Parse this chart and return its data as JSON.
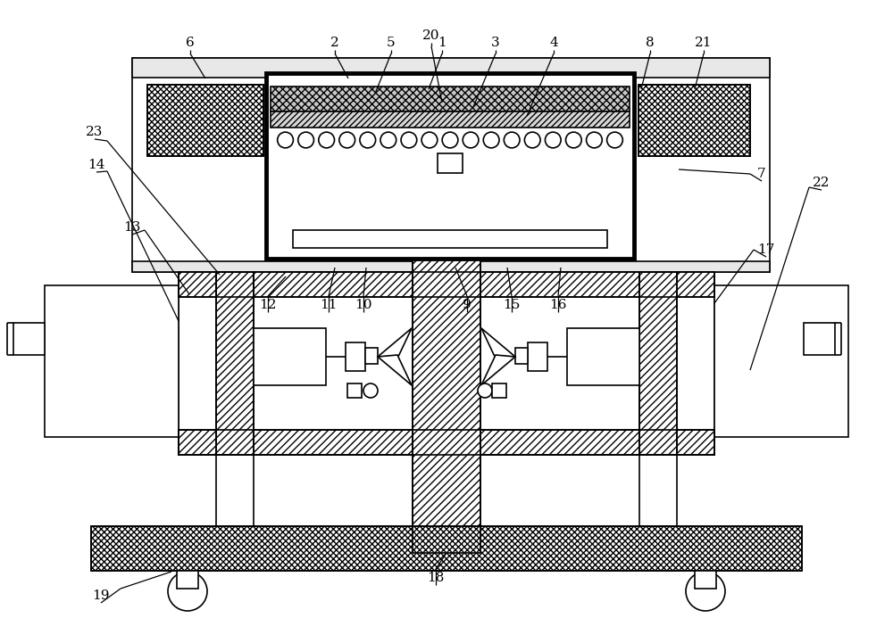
{
  "bg": "#ffffff",
  "lc": "#000000",
  "fig_w": 10.0,
  "fig_h": 7.21,
  "dpi": 100,
  "labels": [
    [
      "1",
      495,
      50
    ],
    [
      "2",
      375,
      50
    ],
    [
      "3",
      555,
      50
    ],
    [
      "4",
      620,
      50
    ],
    [
      "5",
      438,
      50
    ],
    [
      "6",
      213,
      50
    ],
    [
      "7",
      853,
      195
    ],
    [
      "8",
      728,
      50
    ],
    [
      "9",
      523,
      342
    ],
    [
      "10",
      407,
      342
    ],
    [
      "11",
      368,
      342
    ],
    [
      "12",
      300,
      342
    ],
    [
      "13",
      148,
      255
    ],
    [
      "14",
      108,
      185
    ],
    [
      "15",
      573,
      342
    ],
    [
      "16",
      625,
      342
    ],
    [
      "17",
      858,
      280
    ],
    [
      "18",
      488,
      645
    ],
    [
      "19",
      113,
      665
    ],
    [
      "20",
      483,
      42
    ],
    [
      "21",
      788,
      50
    ],
    [
      "22",
      920,
      205
    ],
    [
      "23",
      106,
      148
    ]
  ]
}
